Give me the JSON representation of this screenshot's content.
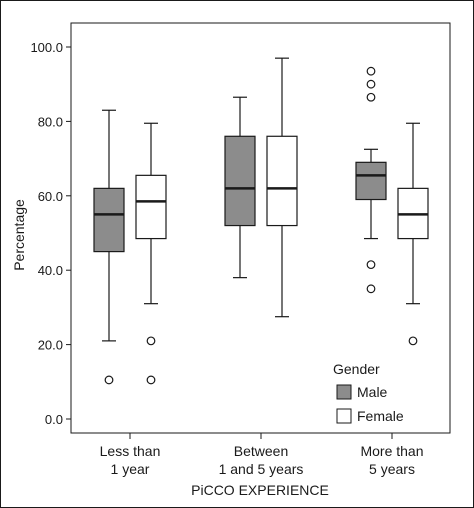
{
  "chart_data": {
    "type": "boxplot",
    "title": "",
    "xlabel": "PiCCO EXPERIENCE",
    "ylabel": "Percentage",
    "ylim": [
      0,
      100
    ],
    "yticks": [
      "0.0",
      "20.0",
      "40.0",
      "60.0",
      "80.0",
      "100.0"
    ],
    "grid": false,
    "legend_position": "bottom-right",
    "categories": [
      {
        "line1": "Less than",
        "line2": "1 year"
      },
      {
        "line1": "Between",
        "line2": "1 and 5 years"
      },
      {
        "line1": "More than",
        "line2": "5 years"
      }
    ],
    "legend": {
      "title": "Gender",
      "items": [
        {
          "label": "Male",
          "color": "#8c8c8c"
        },
        {
          "label": "Female",
          "color": "#ffffff"
        }
      ]
    },
    "series": [
      {
        "name": "Male",
        "color": "#8c8c8c",
        "boxes": [
          {
            "min": 21,
            "q1": 45,
            "median": 55,
            "q3": 62,
            "max": 83,
            "outliers": [
              10.5
            ]
          },
          {
            "min": 38,
            "q1": 52,
            "median": 62,
            "q3": 76,
            "max": 86.5,
            "outliers": []
          },
          {
            "min": 48.5,
            "q1": 59,
            "median": 65.5,
            "q3": 69,
            "max": 72.5,
            "outliers": [
              41.5,
              35,
              86.5,
              90,
              93.5
            ]
          }
        ]
      },
      {
        "name": "Female",
        "color": "#ffffff",
        "boxes": [
          {
            "min": 31,
            "q1": 48.5,
            "median": 58.5,
            "q3": 65.5,
            "max": 79.5,
            "outliers": [
              21,
              10.5
            ]
          },
          {
            "min": 27.5,
            "q1": 52,
            "median": 62,
            "q3": 76,
            "max": 97,
            "outliers": []
          },
          {
            "min": 31,
            "q1": 48.5,
            "median": 55,
            "q3": 62,
            "max": 79.5,
            "outliers": [
              21
            ]
          }
        ]
      }
    ]
  }
}
